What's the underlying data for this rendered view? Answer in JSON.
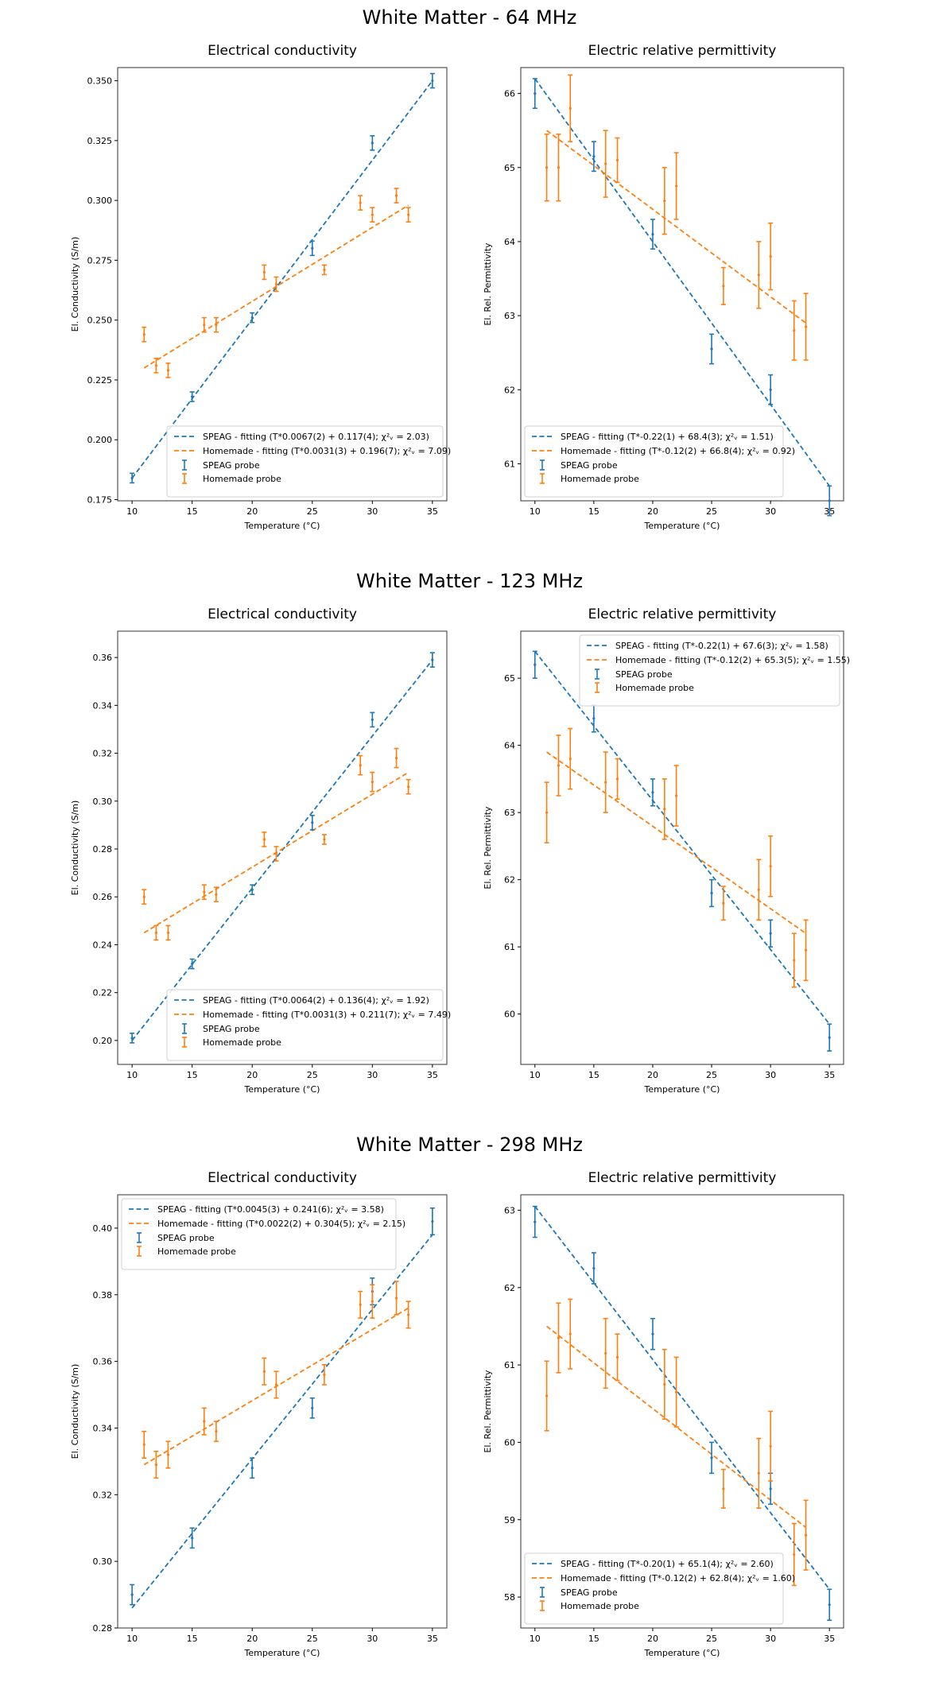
{
  "sections": [
    {
      "title": "White Matter - 64 MHz"
    },
    {
      "title": "White Matter - 123 MHz"
    },
    {
      "title": "White Matter - 298 MHz"
    }
  ],
  "chart_data": [
    {
      "type": "scatter",
      "title": "Electrical conductivity",
      "xlabel": "Temperature (°C)",
      "ylabel": "El. Conductivity (S/m)",
      "xlim": [
        8.8,
        36.2
      ],
      "ylim": [
        0.1745,
        0.3555
      ],
      "xticks": [
        10,
        15,
        20,
        25,
        30,
        35
      ],
      "yticks": [
        0.175,
        0.2,
        0.225,
        0.25,
        0.275,
        0.3,
        0.325,
        0.35
      ],
      "ytick_labels": [
        "0.175",
        "0.200",
        "0.225",
        "0.250",
        "0.275",
        "0.300",
        "0.325",
        "0.350"
      ],
      "legend_position": "lower-right",
      "series": [
        {
          "name": "SPEAG probe",
          "color": "#1f77b4",
          "fit_label": "SPEAG - fitting (T*0.0067(2) + 0.117(4); χ²ᵥ = 2.03)",
          "fit": [
            [
              10,
              0.184
            ],
            [
              35,
              0.35
            ]
          ],
          "points": [
            [
              10,
              0.184,
              0.002
            ],
            [
              15,
              0.218,
              0.002
            ],
            [
              20,
              0.251,
              0.002
            ],
            [
              25,
              0.28,
              0.003
            ],
            [
              30,
              0.324,
              0.003
            ],
            [
              35,
              0.35,
              0.003
            ]
          ]
        },
        {
          "name": "Homemade probe",
          "color": "#ff7f0e",
          "fit_label": "Homemade - fitting (T*0.0031(3) + 0.196(7); χ²ᵥ = 7.09)",
          "fit": [
            [
              11,
              0.23
            ],
            [
              33,
              0.298
            ]
          ],
          "points": [
            [
              11,
              0.244,
              0.003
            ],
            [
              12,
              0.231,
              0.003
            ],
            [
              13,
              0.229,
              0.003
            ],
            [
              16,
              0.248,
              0.003
            ],
            [
              17,
              0.248,
              0.003
            ],
            [
              21,
              0.27,
              0.003
            ],
            [
              22,
              0.265,
              0.003
            ],
            [
              26,
              0.271,
              0.002
            ],
            [
              29,
              0.299,
              0.003
            ],
            [
              30,
              0.294,
              0.003
            ],
            [
              32,
              0.302,
              0.003
            ],
            [
              33,
              0.294,
              0.003
            ]
          ]
        }
      ]
    },
    {
      "type": "scatter",
      "title": "Electric relative permittivity",
      "xlabel": "Temperature (°C)",
      "ylabel": "El. Rel. Permittivity",
      "xlim": [
        8.8,
        36.2
      ],
      "ylim": [
        60.5,
        66.35
      ],
      "xticks": [
        10,
        15,
        20,
        25,
        30,
        35
      ],
      "yticks": [
        61,
        62,
        63,
        64,
        65,
        66
      ],
      "ytick_labels": [
        "61",
        "62",
        "63",
        "64",
        "65",
        "66"
      ],
      "legend_position": "lower-left",
      "series": [
        {
          "name": "SPEAG probe",
          "color": "#1f77b4",
          "fit_label": "SPEAG - fitting (T*-0.22(1) + 68.4(3); χ²ᵥ = 1.51)",
          "fit": [
            [
              10,
              66.2
            ],
            [
              35,
              60.7
            ]
          ],
          "points": [
            [
              10,
              66.0,
              0.2
            ],
            [
              15,
              65.15,
              0.2
            ],
            [
              20,
              64.1,
              0.2
            ],
            [
              25,
              62.55,
              0.2
            ],
            [
              30,
              62.0,
              0.2
            ],
            [
              35,
              60.5,
              0.2
            ]
          ]
        },
        {
          "name": "Homemade probe",
          "color": "#ff7f0e",
          "fit_label": "Homemade - fitting (T*-0.12(2) + 66.8(4); χ²ᵥ = 0.92)",
          "fit": [
            [
              11,
              65.5
            ],
            [
              33,
              62.9
            ]
          ],
          "points": [
            [
              11,
              65.0,
              0.45
            ],
            [
              12,
              65.0,
              0.45
            ],
            [
              13,
              65.8,
              0.45
            ],
            [
              16,
              65.05,
              0.45
            ],
            [
              17,
              65.1,
              0.3
            ],
            [
              21,
              64.55,
              0.45
            ],
            [
              22,
              64.75,
              0.45
            ],
            [
              26,
              63.4,
              0.25
            ],
            [
              29,
              63.55,
              0.45
            ],
            [
              30,
              63.8,
              0.45
            ],
            [
              32,
              62.8,
              0.4
            ],
            [
              33,
              62.85,
              0.45
            ]
          ]
        }
      ]
    },
    {
      "type": "scatter",
      "title": "Electrical conductivity",
      "xlabel": "Temperature (°C)",
      "ylabel": "El. Conductivity (S/m)",
      "xlim": [
        8.8,
        36.2
      ],
      "ylim": [
        0.19,
        0.371
      ],
      "xticks": [
        10,
        15,
        20,
        25,
        30,
        35
      ],
      "yticks": [
        0.2,
        0.22,
        0.24,
        0.26,
        0.28,
        0.3,
        0.32,
        0.34,
        0.36
      ],
      "ytick_labels": [
        "0.20",
        "0.22",
        "0.24",
        "0.26",
        "0.28",
        "0.30",
        "0.32",
        "0.34",
        "0.36"
      ],
      "legend_position": "lower-right",
      "series": [
        {
          "name": "SPEAG probe",
          "color": "#1f77b4",
          "fit_label": "SPEAG - fitting (T*0.0064(2) + 0.136(4); χ²ᵥ = 1.92)",
          "fit": [
            [
              10,
              0.2
            ],
            [
              35,
              0.359
            ]
          ],
          "points": [
            [
              10,
              0.201,
              0.002
            ],
            [
              15,
              0.232,
              0.002
            ],
            [
              20,
              0.263,
              0.002
            ],
            [
              25,
              0.291,
              0.003
            ],
            [
              30,
              0.334,
              0.003
            ],
            [
              35,
              0.359,
              0.003
            ]
          ]
        },
        {
          "name": "Homemade probe",
          "color": "#ff7f0e",
          "fit_label": "Homemade - fitting (T*0.0031(3) + 0.211(7); χ²ᵥ = 7.49)",
          "fit": [
            [
              11,
              0.245
            ],
            [
              33,
              0.312
            ]
          ],
          "points": [
            [
              11,
              0.26,
              0.003
            ],
            [
              12,
              0.245,
              0.003
            ],
            [
              13,
              0.245,
              0.003
            ],
            [
              16,
              0.262,
              0.003
            ],
            [
              17,
              0.261,
              0.003
            ],
            [
              21,
              0.284,
              0.003
            ],
            [
              22,
              0.278,
              0.003
            ],
            [
              26,
              0.284,
              0.002
            ],
            [
              29,
              0.315,
              0.004
            ],
            [
              30,
              0.308,
              0.004
            ],
            [
              32,
              0.318,
              0.004
            ],
            [
              33,
              0.306,
              0.003
            ]
          ]
        }
      ]
    },
    {
      "type": "scatter",
      "title": "Electric relative permittivity",
      "xlabel": "Temperature (°C)",
      "ylabel": "El. Rel. Permittivity",
      "xlim": [
        8.8,
        36.2
      ],
      "ylim": [
        59.25,
        65.7
      ],
      "xticks": [
        10,
        15,
        20,
        25,
        30,
        35
      ],
      "yticks": [
        60,
        61,
        62,
        63,
        64,
        65
      ],
      "ytick_labels": [
        "60",
        "61",
        "62",
        "63",
        "64",
        "65"
      ],
      "legend_position": "upper-right",
      "series": [
        {
          "name": "SPEAG probe",
          "color": "#1f77b4",
          "fit_label": "SPEAG - fitting (T*-0.22(1) + 67.6(3); χ²ᵥ = 1.58)",
          "fit": [
            [
              10,
              65.4
            ],
            [
              35,
              59.85
            ]
          ],
          "points": [
            [
              10,
              65.2,
              0.2
            ],
            [
              15,
              64.4,
              0.2
            ],
            [
              20,
              63.3,
              0.2
            ],
            [
              25,
              61.8,
              0.2
            ],
            [
              30,
              61.2,
              0.2
            ],
            [
              35,
              59.65,
              0.2
            ]
          ]
        },
        {
          "name": "Homemade probe",
          "color": "#ff7f0e",
          "fit_label": "Homemade - fitting (T*-0.12(2) + 65.3(5); χ²ᵥ = 1.55)",
          "fit": [
            [
              11,
              63.9
            ],
            [
              33,
              61.2
            ]
          ],
          "points": [
            [
              11,
              63.0,
              0.45
            ],
            [
              12,
              63.7,
              0.45
            ],
            [
              13,
              63.8,
              0.45
            ],
            [
              16,
              63.45,
              0.45
            ],
            [
              17,
              63.5,
              0.3
            ],
            [
              21,
              63.05,
              0.45
            ],
            [
              22,
              63.25,
              0.45
            ],
            [
              26,
              61.65,
              0.25
            ],
            [
              29,
              61.85,
              0.45
            ],
            [
              30,
              62.2,
              0.45
            ],
            [
              32,
              60.8,
              0.4
            ],
            [
              33,
              60.95,
              0.45
            ]
          ]
        }
      ]
    },
    {
      "type": "scatter",
      "title": "Electrical conductivity",
      "xlabel": "Temperature (°C)",
      "ylabel": "El. Conductivity (S/m)",
      "xlim": [
        8.8,
        36.2
      ],
      "ylim": [
        0.28,
        0.41
      ],
      "xticks": [
        10,
        15,
        20,
        25,
        30,
        35
      ],
      "yticks": [
        0.28,
        0.3,
        0.32,
        0.34,
        0.36,
        0.38,
        0.4
      ],
      "ytick_labels": [
        "0.28",
        "0.30",
        "0.32",
        "0.34",
        "0.36",
        "0.38",
        "0.40"
      ],
      "legend_position": "top-left",
      "series": [
        {
          "name": "SPEAG probe",
          "color": "#1f77b4",
          "fit_label": "SPEAG - fitting (T*0.0045(3) + 0.241(6); χ²ᵥ = 3.58)",
          "fit": [
            [
              10,
              0.286
            ],
            [
              35,
              0.398
            ]
          ],
          "points": [
            [
              10,
              0.29,
              0.003
            ],
            [
              15,
              0.307,
              0.003
            ],
            [
              20,
              0.328,
              0.003
            ],
            [
              25,
              0.346,
              0.003
            ],
            [
              30,
              0.381,
              0.004
            ],
            [
              35,
              0.402,
              0.004
            ]
          ]
        },
        {
          "name": "Homemade probe",
          "color": "#ff7f0e",
          "fit_label": "Homemade - fitting (T*0.0022(2) + 0.304(5); χ²ᵥ = 2.15)",
          "fit": [
            [
              11,
              0.329
            ],
            [
              33,
              0.376
            ]
          ],
          "points": [
            [
              11,
              0.335,
              0.004
            ],
            [
              12,
              0.329,
              0.004
            ],
            [
              13,
              0.332,
              0.004
            ],
            [
              16,
              0.342,
              0.004
            ],
            [
              17,
              0.339,
              0.003
            ],
            [
              21,
              0.357,
              0.004
            ],
            [
              22,
              0.353,
              0.004
            ],
            [
              26,
              0.356,
              0.003
            ],
            [
              29,
              0.377,
              0.004
            ],
            [
              30,
              0.378,
              0.005
            ],
            [
              32,
              0.379,
              0.005
            ],
            [
              33,
              0.374,
              0.004
            ]
          ]
        }
      ]
    },
    {
      "type": "scatter",
      "title": "Electric relative permittivity",
      "xlabel": "Temperature (°C)",
      "ylabel": "El. Rel. Permittivity",
      "xlim": [
        8.8,
        36.2
      ],
      "ylim": [
        57.6,
        63.2
      ],
      "xticks": [
        10,
        15,
        20,
        25,
        30,
        35
      ],
      "yticks": [
        58,
        59,
        60,
        61,
        62,
        63
      ],
      "ytick_labels": [
        "58",
        "59",
        "60",
        "61",
        "62",
        "63"
      ],
      "legend_position": "lower-left",
      "series": [
        {
          "name": "SPEAG probe",
          "color": "#1f77b4",
          "fit_label": "SPEAG - fitting (T*-0.20(1) + 65.1(4); χ²ᵥ = 2.60)",
          "fit": [
            [
              10,
              63.05
            ],
            [
              35,
              58.1
            ]
          ],
          "points": [
            [
              10,
              62.85,
              0.2
            ],
            [
              15,
              62.25,
              0.2
            ],
            [
              20,
              61.4,
              0.2
            ],
            [
              25,
              59.8,
              0.2
            ],
            [
              30,
              59.4,
              0.2
            ],
            [
              35,
              57.9,
              0.2
            ]
          ]
        },
        {
          "name": "Homemade probe",
          "color": "#ff7f0e",
          "fit_label": "Homemade - fitting (T*-0.12(2) + 62.8(4); χ²ᵥ = 1.60)",
          "fit": [
            [
              11,
              61.5
            ],
            [
              33,
              58.9
            ]
          ],
          "points": [
            [
              11,
              60.6,
              0.45
            ],
            [
              12,
              61.35,
              0.45
            ],
            [
              13,
              61.4,
              0.45
            ],
            [
              16,
              61.15,
              0.45
            ],
            [
              17,
              61.1,
              0.3
            ],
            [
              21,
              60.75,
              0.45
            ],
            [
              22,
              60.65,
              0.45
            ],
            [
              26,
              59.4,
              0.25
            ],
            [
              29,
              59.6,
              0.45
            ],
            [
              30,
              59.95,
              0.45
            ],
            [
              32,
              58.55,
              0.4
            ],
            [
              33,
              58.8,
              0.45
            ]
          ]
        }
      ]
    }
  ]
}
